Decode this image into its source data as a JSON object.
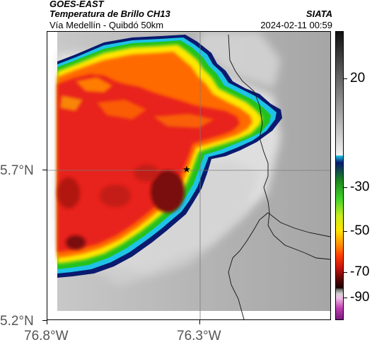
{
  "header": {
    "satellite": "GOES-EAST",
    "product": "Temperatura de Brillo CH13",
    "region": "Vía Medellín - Quibdó 50km",
    "org": "SIATA",
    "datetime": "2024-02-11 00:59"
  },
  "map": {
    "lat_labels": [
      "5.7°N",
      "5.2°N"
    ],
    "lon_labels": [
      "76.8°W",
      "76.3°W"
    ],
    "marker": "star",
    "colors": {
      "cold_core": "#7a0f10",
      "red": "#e8231b",
      "orange": "#ff6a00",
      "yellow": "#ffe600",
      "green": "#22c21e",
      "cyan": "#1ec3e6",
      "navy": "#0a1a6e",
      "warm_gray": "#b8b8b8"
    }
  },
  "colorbar": {
    "labels": [
      "20",
      "-30",
      "-50",
      "-70",
      "-90"
    ],
    "unit_icon": "colorbar-scale"
  }
}
